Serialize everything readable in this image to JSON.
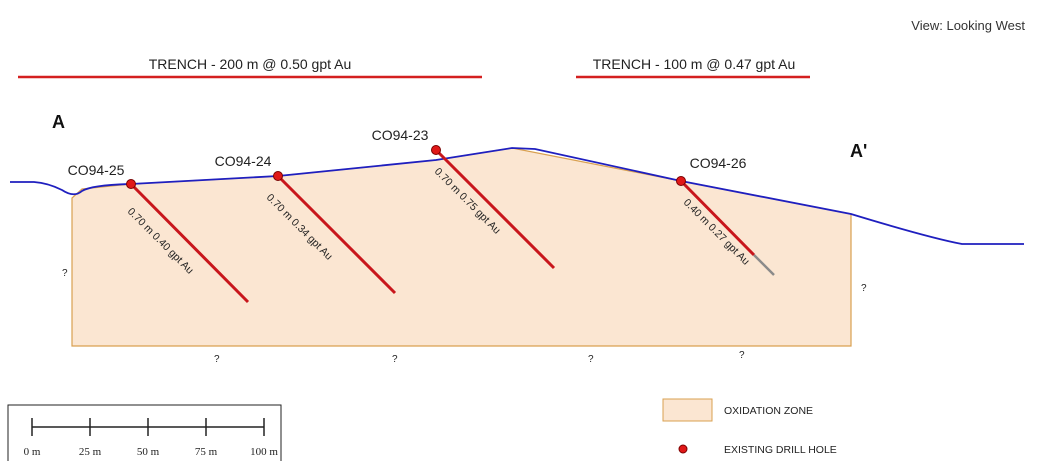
{
  "view_label": "View: Looking West",
  "trenches": [
    {
      "label": "TRENCH - 200 m @ 0.50 gpt Au"
    },
    {
      "label": "TRENCH - 100 m @ 0.47 gpt Au"
    }
  ],
  "section_ends": {
    "left": "A",
    "right": "A'"
  },
  "drill_holes": [
    {
      "id": "CO94-25",
      "interval": "0.70 m 0.40 gpt Au"
    },
    {
      "id": "CO94-24",
      "interval": "0.70 m 0.34 gpt Au"
    },
    {
      "id": "CO94-23",
      "interval": "0.70 m 0.75 gpt Au"
    },
    {
      "id": "CO94-26",
      "interval": "0.40 m 0.27 gpt Au"
    }
  ],
  "unknown_marker": "?",
  "scale_bar": {
    "ticks": [
      "0 m",
      "25 m",
      "50 m",
      "75 m",
      "100 m"
    ]
  },
  "legend": {
    "oxidation_zone": "OXIDATION ZONE",
    "existing_drill_hole": "EXISTING DRILL HOLE"
  },
  "colors": {
    "topography": "#1f1fbf",
    "trench": "#d42020",
    "drill_trace": "#c8161c",
    "oxidation_fill": "#fbe6d2",
    "oxidation_border": "#d9a050",
    "collar": "#e01818"
  }
}
